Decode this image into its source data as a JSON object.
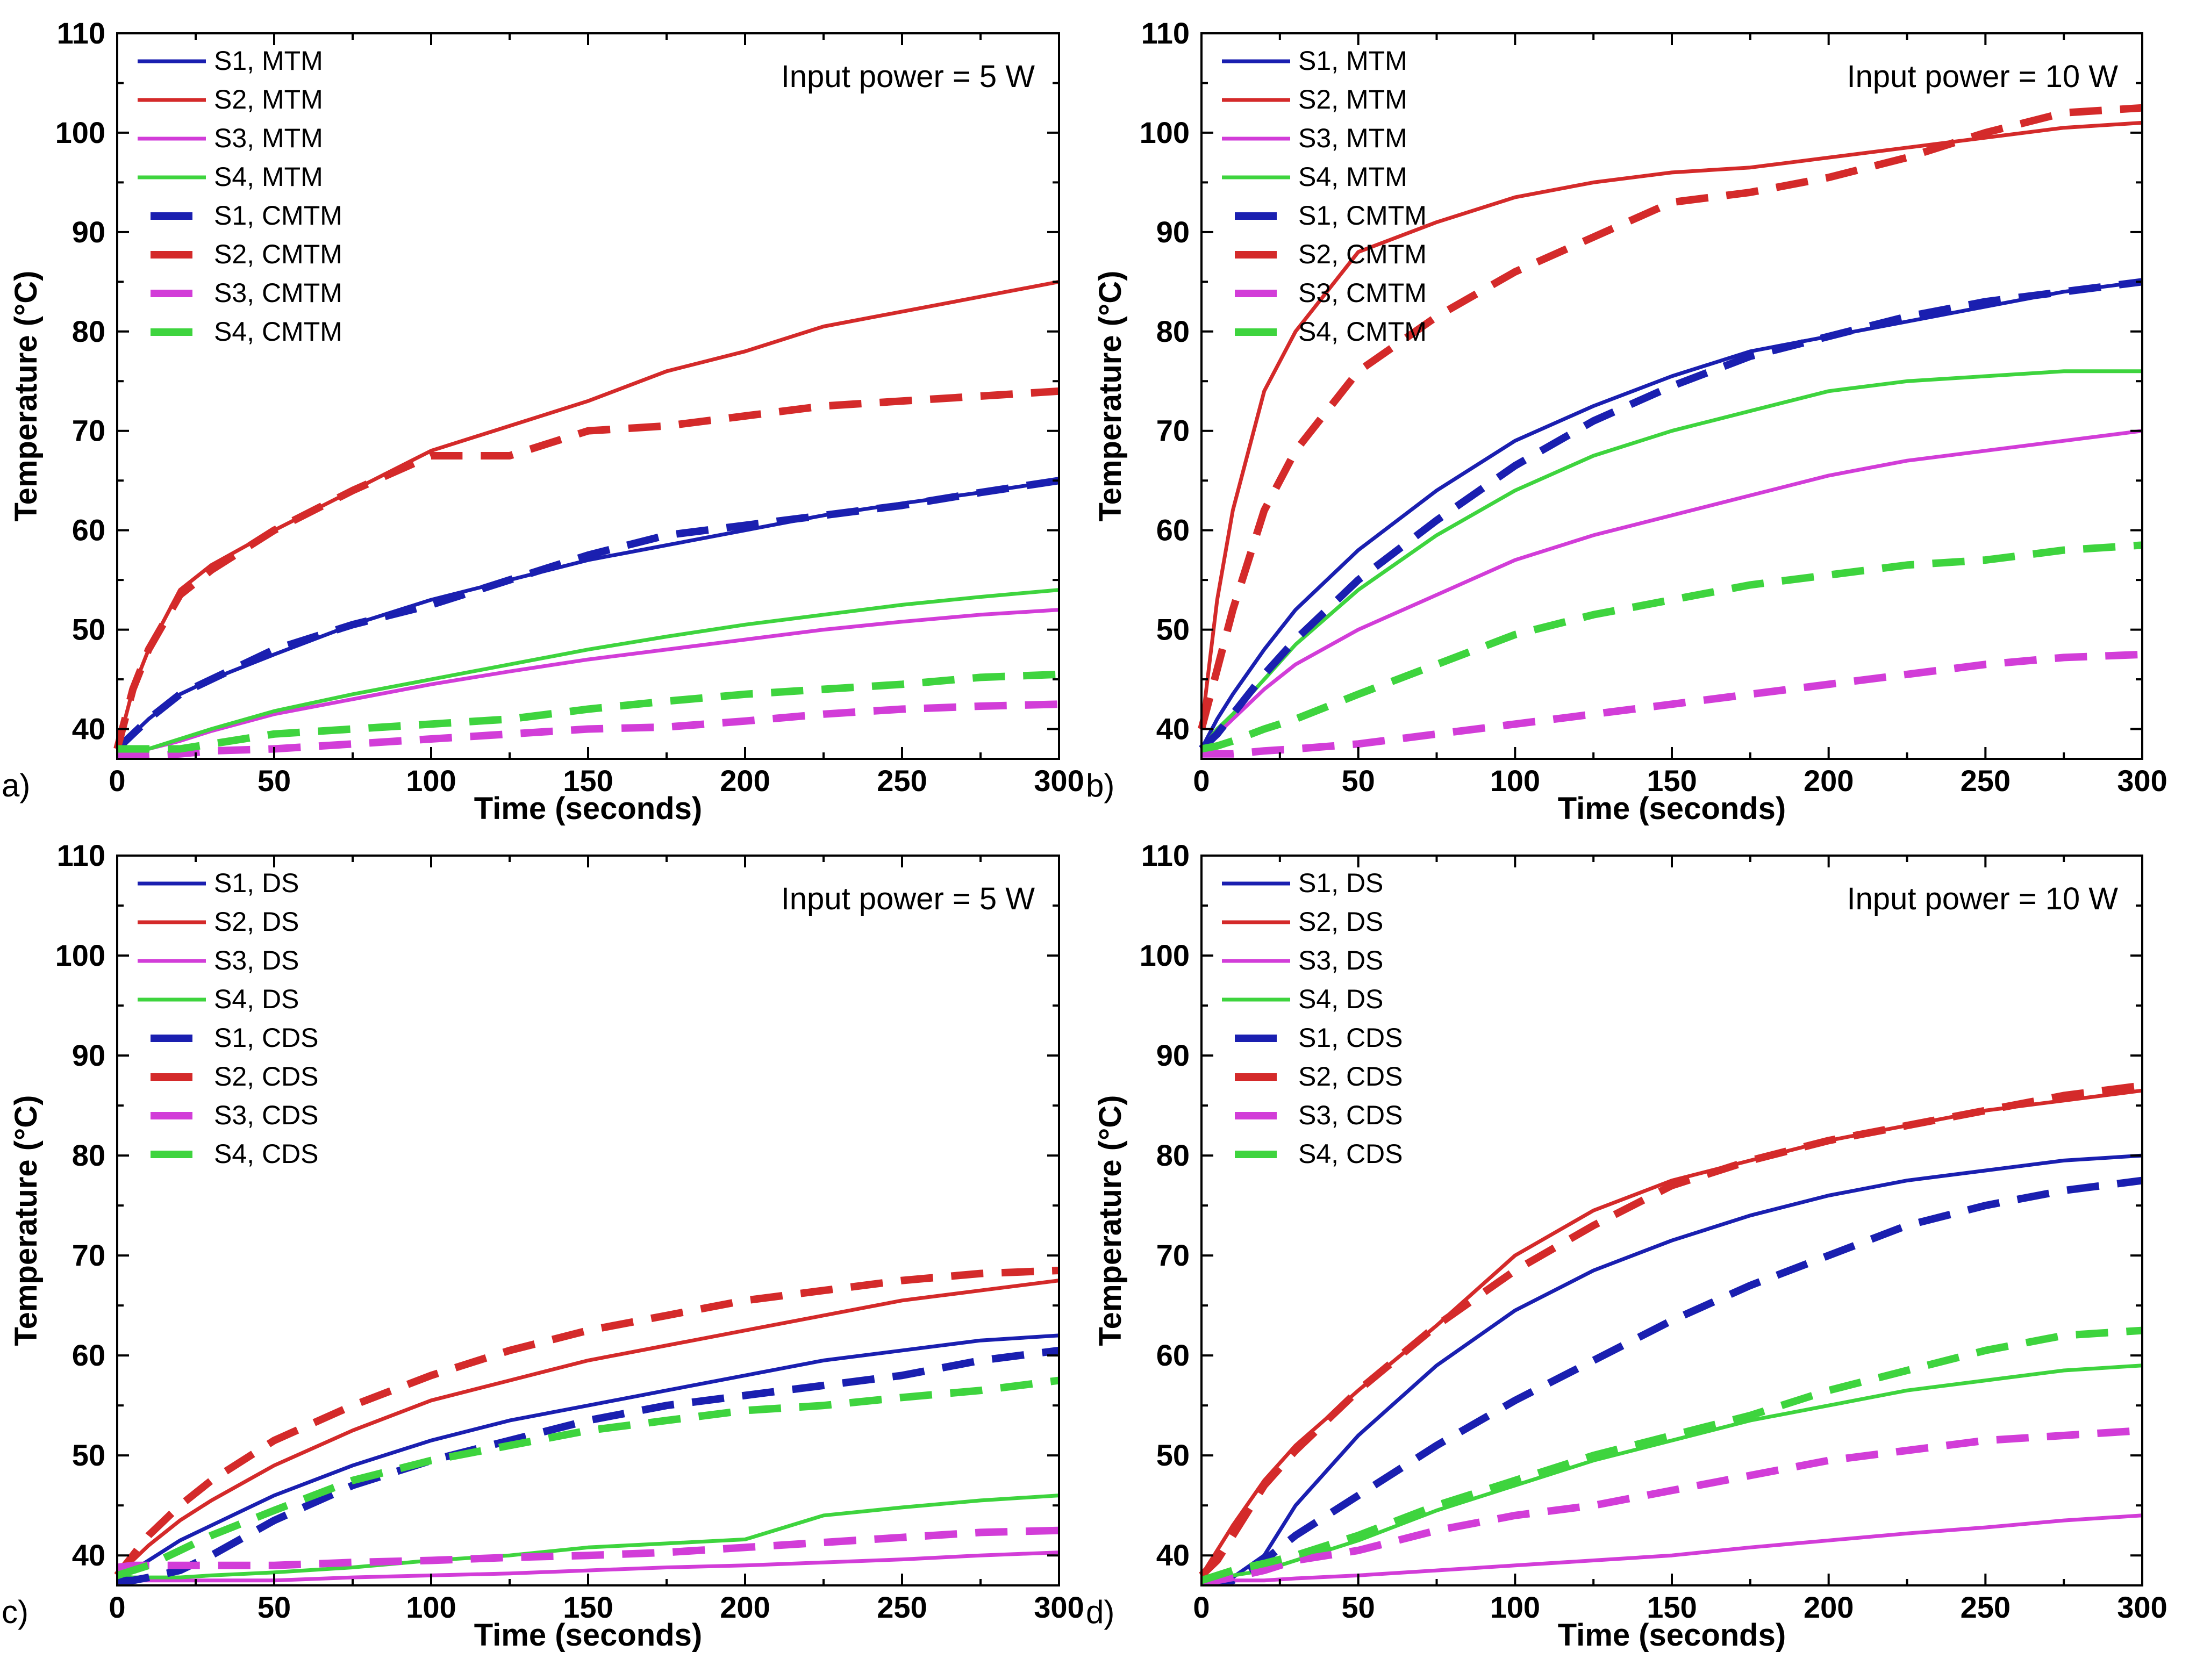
{
  "colors": {
    "S1": "#1a1fb0",
    "S2": "#d42a2a",
    "S3": "#d23dd8",
    "S4": "#3ed43e"
  },
  "chart_data": [
    {
      "id": "a",
      "type": "line",
      "panel_label": "a)",
      "annotation": "Input power = 5 W",
      "xlabel": "Time (seconds)",
      "ylabel": "Temperature (°C)",
      "xlim": [
        0,
        300
      ],
      "ylim": [
        37,
        110
      ],
      "xticks": [
        0,
        50,
        100,
        150,
        200,
        250,
        300
      ],
      "yticks": [
        40,
        50,
        60,
        70,
        80,
        90,
        100,
        110
      ],
      "legend_position": "top-left",
      "x": [
        0,
        5,
        10,
        20,
        30,
        50,
        75,
        100,
        125,
        150,
        175,
        200,
        225,
        250,
        275,
        300
      ],
      "series": [
        {
          "name": "S1, MTM",
          "color_key": "S1",
          "style": "solid",
          "values": [
            38,
            39.5,
            41,
            43.5,
            45,
            47.5,
            50.5,
            53,
            55,
            57,
            58.5,
            60,
            61.5,
            62.7,
            63.8,
            65
          ]
        },
        {
          "name": "S2, MTM",
          "color_key": "S2",
          "style": "solid",
          "values": [
            38,
            44,
            48,
            54,
            56.5,
            60,
            64,
            68,
            70.5,
            73,
            76,
            78,
            80.5,
            82,
            83.5,
            85
          ]
        },
        {
          "name": "S3, MTM",
          "color_key": "S3",
          "style": "solid",
          "values": [
            38,
            37.8,
            38,
            38.8,
            39.8,
            41.5,
            43,
            44.5,
            45.8,
            47,
            48,
            49,
            50,
            50.8,
            51.5,
            52
          ]
        },
        {
          "name": "S4, MTM",
          "color_key": "S4",
          "style": "solid",
          "values": [
            38,
            37.8,
            38,
            39,
            40,
            41.8,
            43.5,
            45,
            46.5,
            48,
            49.3,
            50.5,
            51.5,
            52.5,
            53.3,
            54
          ]
        },
        {
          "name": "S1, CMTM",
          "color_key": "S1",
          "style": "dashed",
          "values": [
            38,
            39.5,
            41,
            43.5,
            45,
            48,
            50.5,
            52.5,
            55,
            57.5,
            59.5,
            60.5,
            61.5,
            62.5,
            63.8,
            65
          ]
        },
        {
          "name": "S2, CMTM",
          "color_key": "S2",
          "style": "dashed",
          "values": [
            38,
            44,
            48,
            53.5,
            56,
            60,
            64,
            67.5,
            67.5,
            70,
            70.5,
            71.5,
            72.5,
            73,
            73.5,
            74
          ]
        },
        {
          "name": "S3, CMTM",
          "color_key": "S3",
          "style": "dashed",
          "values": [
            37.5,
            37.3,
            37.3,
            37.5,
            37.8,
            38,
            38.5,
            39,
            39.5,
            40,
            40.2,
            40.8,
            41.5,
            42,
            42.3,
            42.5
          ]
        },
        {
          "name": "S4, CMTM",
          "color_key": "S4",
          "style": "dashed",
          "values": [
            38,
            38,
            38,
            38,
            38.5,
            39.5,
            40,
            40.5,
            41,
            42,
            42.8,
            43.5,
            44,
            44.5,
            45.2,
            45.5
          ]
        }
      ]
    },
    {
      "id": "b",
      "type": "line",
      "panel_label": "b)",
      "annotation": "Input power = 10 W",
      "xlabel": "Time (seconds)",
      "ylabel": "Temperature (°C)",
      "xlim": [
        0,
        300
      ],
      "ylim": [
        37,
        110
      ],
      "xticks": [
        0,
        50,
        100,
        150,
        200,
        250,
        300
      ],
      "yticks": [
        40,
        50,
        60,
        70,
        80,
        90,
        100,
        110
      ],
      "legend_position": "top-left",
      "x": [
        0,
        5,
        10,
        20,
        30,
        50,
        75,
        100,
        125,
        150,
        175,
        200,
        225,
        250,
        275,
        300
      ],
      "series": [
        {
          "name": "S1, MTM",
          "color_key": "S1",
          "style": "solid",
          "values": [
            38,
            41,
            43.5,
            48,
            52,
            58,
            64,
            69,
            72.5,
            75.5,
            78,
            79.5,
            81,
            82.5,
            84,
            85
          ]
        },
        {
          "name": "S2, MTM",
          "color_key": "S2",
          "style": "solid",
          "values": [
            40,
            53,
            62,
            74,
            80,
            88,
            91,
            93.5,
            95,
            96,
            96.5,
            97.5,
            98.5,
            99.5,
            100.5,
            101
          ]
        },
        {
          "name": "S3, MTM",
          "color_key": "S3",
          "style": "solid",
          "values": [
            38,
            39.5,
            41,
            44,
            46.5,
            50,
            53.5,
            57,
            59.5,
            61.5,
            63.5,
            65.5,
            67,
            68,
            69,
            70
          ]
        },
        {
          "name": "S4, MTM",
          "color_key": "S4",
          "style": "solid",
          "values": [
            38,
            40,
            41.5,
            45,
            48.5,
            54,
            59.5,
            64,
            67.5,
            70,
            72,
            74,
            75,
            75.5,
            76,
            76
          ]
        },
        {
          "name": "S1, CMTM",
          "color_key": "S1",
          "style": "dashed",
          "values": [
            38,
            39.5,
            41.5,
            45.5,
            49,
            55,
            61,
            66.5,
            71,
            74.5,
            77.5,
            79.5,
            81.5,
            83,
            84,
            85
          ]
        },
        {
          "name": "S2, CMTM",
          "color_key": "S2",
          "style": "dashed",
          "values": [
            40,
            46,
            52,
            62,
            68,
            76,
            81.5,
            86,
            89.5,
            93,
            94,
            95.5,
            97.5,
            100,
            102,
            102.5
          ]
        },
        {
          "name": "S3, CMTM",
          "color_key": "S3",
          "style": "dashed",
          "values": [
            37.5,
            37.5,
            37.5,
            37.8,
            38,
            38.5,
            39.5,
            40.5,
            41.5,
            42.5,
            43.5,
            44.5,
            45.5,
            46.5,
            47.2,
            47.5
          ]
        },
        {
          "name": "S4, CMTM",
          "color_key": "S4",
          "style": "dashed",
          "values": [
            38,
            38.3,
            38.8,
            40,
            41,
            43.5,
            46.5,
            49.5,
            51.5,
            53,
            54.5,
            55.5,
            56.5,
            57,
            58,
            58.5
          ]
        }
      ]
    },
    {
      "id": "c",
      "type": "line",
      "panel_label": "c)",
      "annotation": "Input power = 5 W",
      "xlabel": "Time (seconds)",
      "ylabel": "Temperature (°C)",
      "xlim": [
        0,
        300
      ],
      "ylim": [
        37,
        110
      ],
      "xticks": [
        0,
        50,
        100,
        150,
        200,
        250,
        300
      ],
      "yticks": [
        40,
        50,
        60,
        70,
        80,
        90,
        100,
        110
      ],
      "legend_position": "top-left",
      "x": [
        0,
        5,
        10,
        20,
        30,
        50,
        75,
        100,
        125,
        150,
        175,
        200,
        225,
        250,
        275,
        300
      ],
      "series": [
        {
          "name": "S1, DS",
          "color_key": "S1",
          "style": "solid",
          "values": [
            37.5,
            38.5,
            39.5,
            41.5,
            43,
            46,
            49,
            51.5,
            53.5,
            55,
            56.5,
            58,
            59.5,
            60.5,
            61.5,
            62
          ]
        },
        {
          "name": "S2, DS",
          "color_key": "S2",
          "style": "solid",
          "values": [
            38,
            39.5,
            41,
            43.5,
            45.5,
            49,
            52.5,
            55.5,
            57.5,
            59.5,
            61,
            62.5,
            64,
            65.5,
            66.5,
            67.5
          ]
        },
        {
          "name": "S3, DS",
          "color_key": "S3",
          "style": "solid",
          "values": [
            37.5,
            37.5,
            37.5,
            37.5,
            37.5,
            37.5,
            37.8,
            38,
            38.2,
            38.5,
            38.8,
            39,
            39.3,
            39.6,
            40,
            40.3
          ]
        },
        {
          "name": "S4, DS",
          "color_key": "S4",
          "style": "solid",
          "values": [
            38,
            37.8,
            37.8,
            37.8,
            38,
            38.3,
            38.8,
            39.5,
            40,
            40.8,
            41.2,
            41.6,
            44,
            44.8,
            45.5,
            46
          ]
        },
        {
          "name": "S1, CDS",
          "color_key": "S1",
          "style": "dashed",
          "values": [
            37.5,
            37.5,
            37.8,
            38.5,
            40,
            43.5,
            47,
            49.5,
            51.5,
            53.5,
            55,
            56,
            57,
            58,
            59.5,
            60.5
          ]
        },
        {
          "name": "S2, CDS",
          "color_key": "S2",
          "style": "dashed",
          "values": [
            38,
            40,
            42,
            45,
            47.5,
            51.5,
            55,
            58,
            60.5,
            62.5,
            64,
            65.5,
            66.5,
            67.5,
            68.2,
            68.5
          ]
        },
        {
          "name": "S3, CDS",
          "color_key": "S3",
          "style": "dashed",
          "values": [
            38.8,
            39,
            39,
            39,
            39,
            39,
            39.3,
            39.5,
            39.8,
            40,
            40.3,
            40.8,
            41.3,
            41.8,
            42.3,
            42.5
          ]
        },
        {
          "name": "S4, CDS",
          "color_key": "S4",
          "style": "dashed",
          "values": [
            38,
            38.5,
            39,
            40.5,
            42,
            44.5,
            47.5,
            49.5,
            51,
            52.5,
            53.5,
            54.5,
            55,
            55.8,
            56.5,
            57.5
          ]
        }
      ]
    },
    {
      "id": "d",
      "type": "line",
      "panel_label": "d)",
      "annotation": "Input power = 10 W",
      "xlabel": "Time (seconds)",
      "ylabel": "Temperature (°C)",
      "xlim": [
        0,
        300
      ],
      "ylim": [
        37,
        110
      ],
      "xticks": [
        0,
        50,
        100,
        150,
        200,
        250,
        300
      ],
      "yticks": [
        40,
        50,
        60,
        70,
        80,
        90,
        100,
        110
      ],
      "legend_position": "top-left",
      "x": [
        0,
        5,
        10,
        20,
        30,
        50,
        75,
        100,
        125,
        150,
        175,
        200,
        225,
        250,
        275,
        300
      ],
      "series": [
        {
          "name": "S1, DS",
          "color_key": "S1",
          "style": "solid",
          "values": [
            37.5,
            37.5,
            37.8,
            40,
            45,
            52,
            59,
            64.5,
            68.5,
            71.5,
            74,
            76,
            77.5,
            78.5,
            79.5,
            80
          ]
        },
        {
          "name": "S2, DS",
          "color_key": "S2",
          "style": "solid",
          "values": [
            38,
            40.5,
            43,
            47.5,
            51,
            56.5,
            63,
            70,
            74.5,
            77.5,
            79.5,
            81.5,
            83,
            84.5,
            85.5,
            86.5
          ]
        },
        {
          "name": "S3, DS",
          "color_key": "S3",
          "style": "solid",
          "values": [
            37.5,
            37.5,
            37.5,
            37.5,
            37.7,
            38,
            38.5,
            39,
            39.5,
            40,
            40.8,
            41.5,
            42.2,
            42.8,
            43.5,
            44
          ]
        },
        {
          "name": "S4, DS",
          "color_key": "S4",
          "style": "solid",
          "values": [
            37.5,
            37.8,
            38,
            38.5,
            39.5,
            41.5,
            44.5,
            47,
            49.5,
            51.5,
            53.5,
            55,
            56.5,
            57.5,
            58.5,
            59
          ]
        },
        {
          "name": "S1, CDS",
          "color_key": "S1",
          "style": "dashed",
          "values": [
            37.5,
            37.5,
            37.5,
            39.5,
            42,
            46,
            51,
            55.5,
            59.5,
            63.5,
            67,
            70,
            73,
            75,
            76.5,
            77.5
          ]
        },
        {
          "name": "S2, CDS",
          "color_key": "S2",
          "style": "dashed",
          "values": [
            38,
            39.5,
            42,
            47,
            50.5,
            56.5,
            63,
            68.5,
            73,
            77,
            79.5,
            81.5,
            83,
            84.5,
            86,
            87
          ]
        },
        {
          "name": "S3, CDS",
          "color_key": "S3",
          "style": "dashed",
          "values": [
            37.5,
            37.5,
            37.8,
            38.5,
            39.5,
            40.5,
            42.5,
            44,
            45,
            46.5,
            48,
            49.5,
            50.5,
            51.5,
            52,
            52.5
          ]
        },
        {
          "name": "S4, CDS",
          "color_key": "S4",
          "style": "dashed",
          "values": [
            37.5,
            38,
            38.5,
            39.2,
            40,
            42,
            45,
            47.5,
            50,
            52,
            54,
            56.5,
            58.5,
            60.5,
            62,
            62.5
          ]
        }
      ]
    }
  ]
}
